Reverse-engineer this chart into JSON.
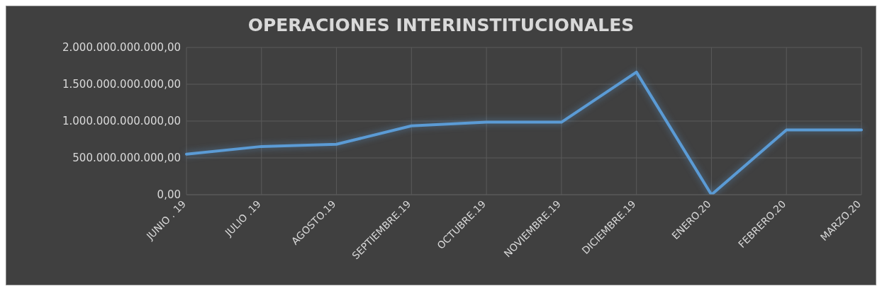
{
  "chart_data": {
    "type": "line",
    "title": "OPERACIONES INTERINSTITUCIONALES",
    "categories": [
      "JUNIO . 19",
      "JULIO .19",
      "AGOSTO.19",
      "SEPTIEMBRE.19",
      "OCTUBRE.19",
      "NOVIEMBRE.19",
      "DICIEMBRE.19",
      "ENERO.20",
      "FEBRERO.20",
      "MARZO.20"
    ],
    "series": [
      {
        "color": "#5b9bd5",
        "values": [
          550000000000,
          655000000000,
          685000000000,
          935000000000,
          985000000000,
          985000000000,
          1665000000000,
          0,
          880000000000,
          880000000000
        ]
      }
    ],
    "ylim": [
      0,
      2000000000000
    ],
    "yticks": [
      {
        "value": 0,
        "label": "0,00"
      },
      {
        "value": 500000000000,
        "label": "500.000.000.000,00"
      },
      {
        "value": 1000000000000,
        "label": "1.000.000.000.000,00"
      },
      {
        "value": 1500000000000,
        "label": "1.500.000.000.000,00"
      },
      {
        "value": 2000000000000,
        "label": "2.000.000.000.000,00"
      }
    ],
    "grid": true,
    "legend": false,
    "marker": "none",
    "line_style": "solid"
  }
}
